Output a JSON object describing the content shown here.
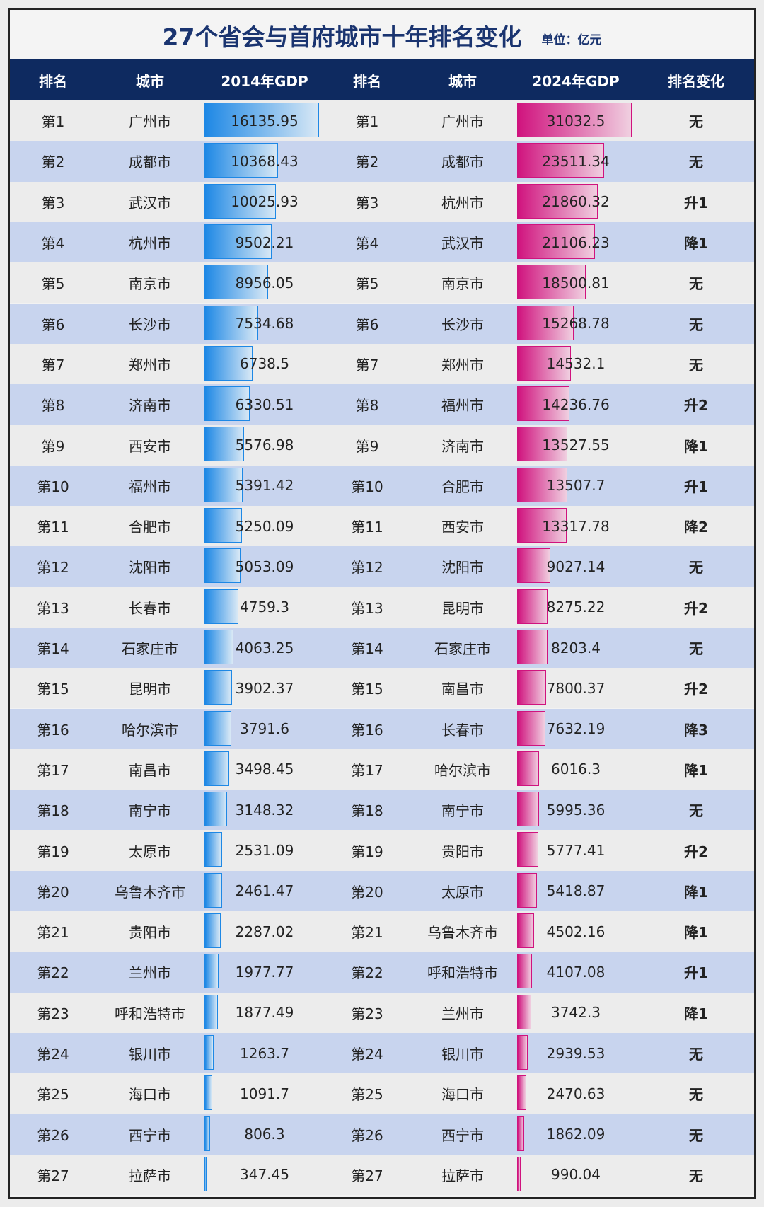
{
  "title": "27个省会与首府城市十年排名变化",
  "unit": "单位：亿元",
  "colors": {
    "header_bg": "#0e2a60",
    "title": "#1a3470",
    "row_odd": "#ececec",
    "row_even": "#c8d4ee",
    "bar_2014": "#1e88e5",
    "bar_2024": "#d0137e"
  },
  "headers": [
    "排名",
    "城市",
    "2014年GDP",
    "排名",
    "城市",
    "2024年GDP",
    "排名变化"
  ],
  "rows": [
    {
      "rank1": "第1",
      "city1": "广州市",
      "gdp1": "16135.95",
      "rank2": "第1",
      "city2": "广州市",
      "gdp2": "31032.5",
      "change": "无"
    },
    {
      "rank1": "第2",
      "city1": "成都市",
      "gdp1": "10368.43",
      "rank2": "第2",
      "city2": "成都市",
      "gdp2": "23511.34",
      "change": "无"
    },
    {
      "rank1": "第3",
      "city1": "武汉市",
      "gdp1": "10025.93",
      "rank2": "第3",
      "city2": "杭州市",
      "gdp2": "21860.32",
      "change": "升1"
    },
    {
      "rank1": "第4",
      "city1": "杭州市",
      "gdp1": "9502.21",
      "rank2": "第4",
      "city2": "武汉市",
      "gdp2": "21106.23",
      "change": "降1"
    },
    {
      "rank1": "第5",
      "city1": "南京市",
      "gdp1": "8956.05",
      "rank2": "第5",
      "city2": "南京市",
      "gdp2": "18500.81",
      "change": "无"
    },
    {
      "rank1": "第6",
      "city1": "长沙市",
      "gdp1": "7534.68",
      "rank2": "第6",
      "city2": "长沙市",
      "gdp2": "15268.78",
      "change": "无"
    },
    {
      "rank1": "第7",
      "city1": "郑州市",
      "gdp1": "6738.5",
      "rank2": "第7",
      "city2": "郑州市",
      "gdp2": "14532.1",
      "change": "无"
    },
    {
      "rank1": "第8",
      "city1": "济南市",
      "gdp1": "6330.51",
      "rank2": "第8",
      "city2": "福州市",
      "gdp2": "14236.76",
      "change": "升2"
    },
    {
      "rank1": "第9",
      "city1": "西安市",
      "gdp1": "5576.98",
      "rank2": "第9",
      "city2": "济南市",
      "gdp2": "13527.55",
      "change": "降1"
    },
    {
      "rank1": "第10",
      "city1": "福州市",
      "gdp1": "5391.42",
      "rank2": "第10",
      "city2": "合肥市",
      "gdp2": "13507.7",
      "change": "升1"
    },
    {
      "rank1": "第11",
      "city1": "合肥市",
      "gdp1": "5250.09",
      "rank2": "第11",
      "city2": "西安市",
      "gdp2": "13317.78",
      "change": "降2"
    },
    {
      "rank1": "第12",
      "city1": "沈阳市",
      "gdp1": "5053.09",
      "rank2": "第12",
      "city2": "沈阳市",
      "gdp2": "9027.14",
      "change": "无"
    },
    {
      "rank1": "第13",
      "city1": "长春市",
      "gdp1": "4759.3",
      "rank2": "第13",
      "city2": "昆明市",
      "gdp2": "8275.22",
      "change": "升2"
    },
    {
      "rank1": "第14",
      "city1": "石家庄市",
      "gdp1": "4063.25",
      "rank2": "第14",
      "city2": "石家庄市",
      "gdp2": "8203.4",
      "change": "无"
    },
    {
      "rank1": "第15",
      "city1": "昆明市",
      "gdp1": "3902.37",
      "rank2": "第15",
      "city2": "南昌市",
      "gdp2": "7800.37",
      "change": "升2"
    },
    {
      "rank1": "第16",
      "city1": "哈尔滨市",
      "gdp1": "3791.6",
      "rank2": "第16",
      "city2": "长春市",
      "gdp2": "7632.19",
      "change": "降3"
    },
    {
      "rank1": "第17",
      "city1": "南昌市",
      "gdp1": "3498.45",
      "rank2": "第17",
      "city2": "哈尔滨市",
      "gdp2": "6016.3",
      "change": "降1"
    },
    {
      "rank1": "第18",
      "city1": "南宁市",
      "gdp1": "3148.32",
      "rank2": "第18",
      "city2": "南宁市",
      "gdp2": "5995.36",
      "change": "无"
    },
    {
      "rank1": "第19",
      "city1": "太原市",
      "gdp1": "2531.09",
      "rank2": "第19",
      "city2": "贵阳市",
      "gdp2": "5777.41",
      "change": "升2"
    },
    {
      "rank1": "第20",
      "city1": "乌鲁木齐市",
      "gdp1": "2461.47",
      "rank2": "第20",
      "city2": "太原市",
      "gdp2": "5418.87",
      "change": "降1"
    },
    {
      "rank1": "第21",
      "city1": "贵阳市",
      "gdp1": "2287.02",
      "rank2": "第21",
      "city2": "乌鲁木齐市",
      "gdp2": "4502.16",
      "change": "降1"
    },
    {
      "rank1": "第22",
      "city1": "兰州市",
      "gdp1": "1977.77",
      "rank2": "第22",
      "city2": "呼和浩特市",
      "gdp2": "4107.08",
      "change": "升1"
    },
    {
      "rank1": "第23",
      "city1": "呼和浩特市",
      "gdp1": "1877.49",
      "rank2": "第23",
      "city2": "兰州市",
      "gdp2": "3742.3",
      "change": "降1"
    },
    {
      "rank1": "第24",
      "city1": "银川市",
      "gdp1": "1263.7",
      "rank2": "第24",
      "city2": "银川市",
      "gdp2": "2939.53",
      "change": "无"
    },
    {
      "rank1": "第25",
      "city1": "海口市",
      "gdp1": "1091.7",
      "rank2": "第25",
      "city2": "海口市",
      "gdp2": "2470.63",
      "change": "无"
    },
    {
      "rank1": "第26",
      "city1": "西宁市",
      "gdp1": "806.3",
      "rank2": "第26",
      "city2": "西宁市",
      "gdp2": "1862.09",
      "change": "无"
    },
    {
      "rank1": "第27",
      "city1": "拉萨市",
      "gdp1": "347.45",
      "rank2": "第27",
      "city2": "拉萨市",
      "gdp2": "990.04",
      "change": "无"
    }
  ]
}
